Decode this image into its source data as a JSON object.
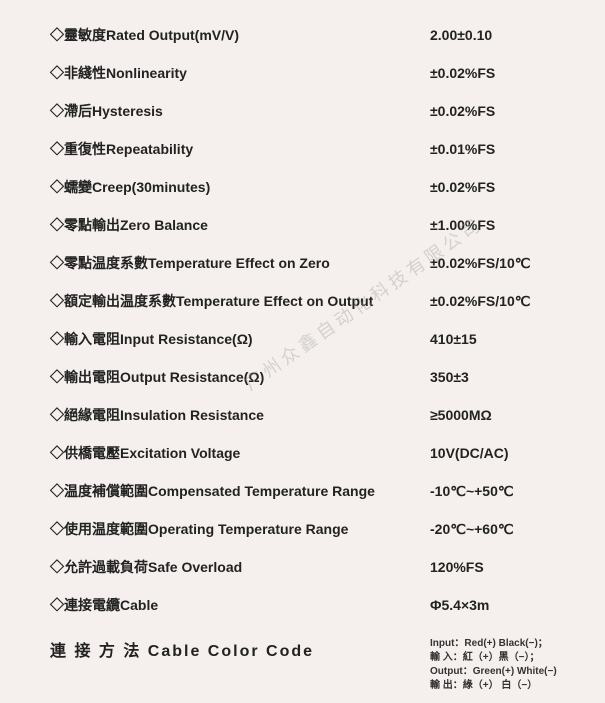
{
  "specs": [
    {
      "label": "◇靈敏度Rated Output(mV/V)",
      "value": "2.00±0.10"
    },
    {
      "label": "◇非綫性Nonlinearity",
      "value": "±0.02%FS"
    },
    {
      "label": "◇滯后Hysteresis",
      "value": "±0.02%FS"
    },
    {
      "label": "◇重復性Repeatability",
      "value": "±0.01%FS"
    },
    {
      "label": "◇蠕變Creep(30minutes)",
      "value": "±0.02%FS"
    },
    {
      "label": "◇零點輸出Zero Balance",
      "value": "±1.00%FS"
    },
    {
      "label": "◇零點温度系數Temperature Effect on Zero",
      "value": "±0.02%FS/10℃"
    },
    {
      "label": "◇額定輸出温度系數Temperature Effect on Output",
      "value": "±0.02%FS/10℃"
    },
    {
      "label": "◇輸入電阻Input Resistance(Ω)",
      "value": "410±15"
    },
    {
      "label": "◇輸出電阻Output Resistance(Ω)",
      "value": "350±3"
    },
    {
      "label": "◇絕緣電阻Insulation Resistance",
      "value": "≥5000MΩ"
    },
    {
      "label": "◇供橋電壓Excitation Voltage",
      "value": "10V(DC/AC)"
    },
    {
      "label": "◇温度補償範圍Compensated Temperature Range",
      "value": "-10℃~+50℃"
    },
    {
      "label": "◇使用温度範圍Operating Temperature Range",
      "value": "-20℃~+60℃"
    },
    {
      "label": "◇允許過載負荷Safe Overload",
      "value": "120%FS"
    },
    {
      "label": "◇連接電纜Cable",
      "value": "Φ5.4×3m"
    }
  ],
  "footer": {
    "label": "連 接 方 法 Cable Color Code",
    "lines": [
      "Input：Red(+) Black(−)；",
      "輸 入：紅（+）黑（−）；",
      "Output：Green(+) White(−)",
      "輸 出：綠（+） 白（−）"
    ]
  },
  "watermark": "广州众鑫自动化科技有限公司",
  "colors": {
    "background": "#f5f0ed",
    "text": "#222",
    "watermark": "rgba(150,150,150,0.35)"
  }
}
